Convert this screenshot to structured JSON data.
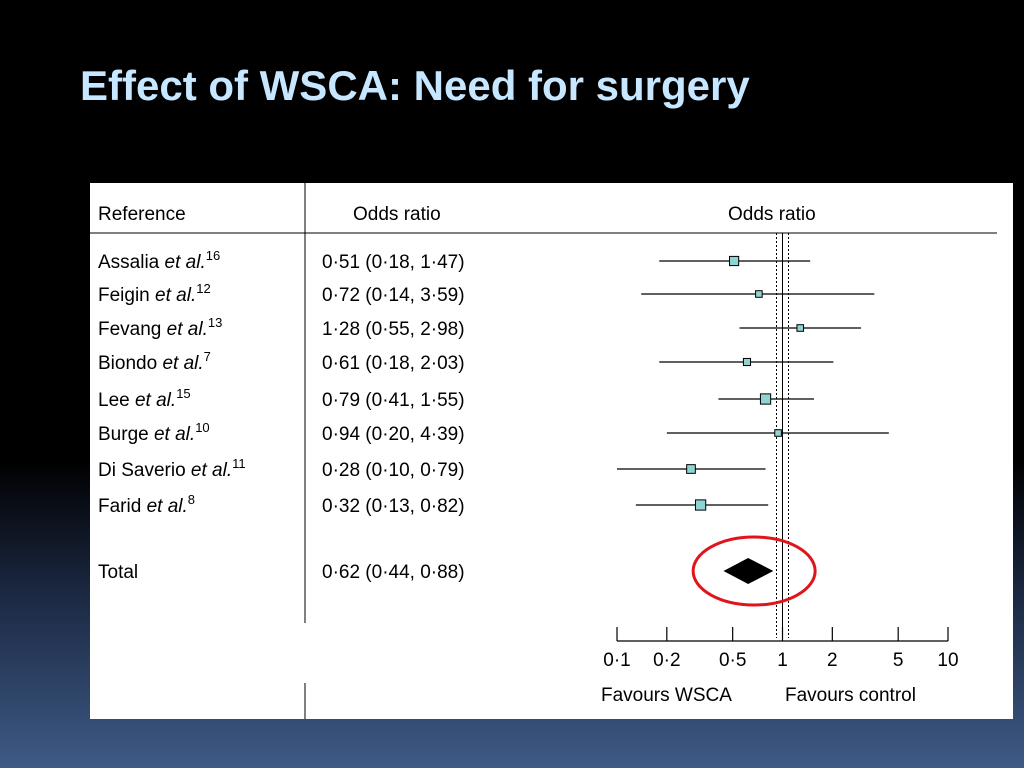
{
  "slide": {
    "title": "Effect of WSCA: Need for surgery"
  },
  "table": {
    "header_reference": "Reference",
    "header_or_text": "Odds ratio",
    "header_or_plot": "Odds ratio"
  },
  "chart_data": {
    "type": "forest",
    "scale": "log",
    "xlim": [
      0.1,
      10
    ],
    "x_ticks": [
      0.1,
      0.2,
      0.5,
      1,
      2,
      5,
      10
    ],
    "x_tick_labels": [
      "0·1",
      "0·2",
      "0·5",
      "1",
      "2",
      "5",
      "10"
    ],
    "null_line": 1,
    "pooled_dotted_line": 0.62,
    "studies": [
      {
        "author": "Assalia",
        "etal": "et al.",
        "ref": "16",
        "or_text": "0·51 (0·18, 1·47)",
        "or": 0.51,
        "lo": 0.18,
        "hi": 1.47,
        "weight": 2
      },
      {
        "author": "Feigin",
        "etal": "et al.",
        "ref": "12",
        "or_text": "0·72 (0·14, 3·59)",
        "or": 0.72,
        "lo": 0.14,
        "hi": 3.59,
        "weight": 1
      },
      {
        "author": "Fevang",
        "etal": "et al.",
        "ref": "13",
        "or_text": "1·28 (0·55, 2·98)",
        "or": 1.28,
        "lo": 0.55,
        "hi": 2.98,
        "weight": 1
      },
      {
        "author": "Biondo",
        "etal": "et al.",
        "ref": "7",
        "or_text": "0·61 (0·18, 2·03)",
        "or": 0.61,
        "lo": 0.18,
        "hi": 2.03,
        "weight": 1.2
      },
      {
        "author": "Lee",
        "etal": "et al.",
        "ref": "15",
        "or_text": "0·79 (0·41, 1·55)",
        "or": 0.79,
        "lo": 0.41,
        "hi": 1.55,
        "weight": 2.4
      },
      {
        "author": "Burge",
        "etal": "et al.",
        "ref": "10",
        "or_text": "0·94 (0·20, 4·39)",
        "or": 0.94,
        "lo": 0.2,
        "hi": 4.39,
        "weight": 1
      },
      {
        "author": "Di Saverio",
        "etal": "et al.",
        "ref": "11",
        "or_text": "0·28 (0·10, 0·79)",
        "or": 0.28,
        "lo": 0.1,
        "hi": 0.79,
        "weight": 1.8
      },
      {
        "author": "Farid",
        "etal": "et al.",
        "ref": "8",
        "or_text": "0·32 (0·13, 0·82)",
        "or": 0.32,
        "lo": 0.13,
        "hi": 0.82,
        "weight": 2.4
      }
    ],
    "total": {
      "label": "Total",
      "or_text": "0·62 (0·44, 0·88)",
      "or": 0.62,
      "lo": 0.44,
      "hi": 0.88
    },
    "favours_left": "Favours WSCA",
    "favours_right": "Favours control",
    "marker_color": "#8fd3d3",
    "highlight_color": "#e0151c"
  }
}
